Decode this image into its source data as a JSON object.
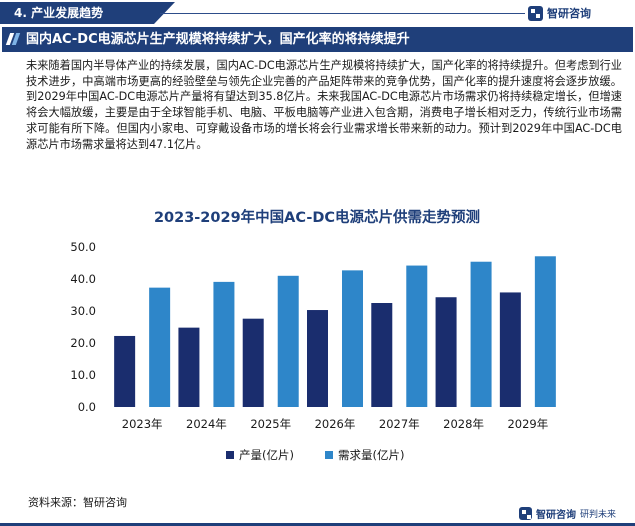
{
  "header": {
    "section_label": "4. 产业发展趋势",
    "brand": "智研咨询"
  },
  "headline": "国内AC-DC电源芯片生产规模将持续扩大，国产化率的将持续提升",
  "paragraph": "未来随着国内半导体产业的持续发展，国内AC-DC电源芯片生产规模将持续扩大，国产化率的将持续提升。但考虑到行业技术进步，中高端市场更高的经验壁垒与领先企业完善的产品矩阵带来的竞争优势，国产化率的提升速度将会逐步放缓。到2029年中国AC-DC电源芯片产量将有望达到35.8亿片。未来我国AC-DC电源芯片市场需求仍将持续稳定增长，但增速将会大幅放缓，主要是由于全球智能手机、电脑、平板电脑等产业进入包含期，消费电子增长相对乏力，传统行业市场需求可能有所下降。但国内小家电、可穿戴设备市场的增长将会行业需求增长带来新的动力。预计到2029年中国AC-DC电源芯片市场需求量将达到47.1亿片。",
  "chart_data": {
    "type": "bar",
    "title": "2023-2029年中国AC-DC电源芯片供需走势预测",
    "categories": [
      "2023年",
      "2024年",
      "2025年",
      "2026年",
      "2027年",
      "2028年",
      "2029年"
    ],
    "series": [
      {
        "name": "产量(亿片)",
        "values": [
          22.2,
          24.8,
          27.6,
          30.3,
          32.5,
          34.3,
          35.8
        ],
        "color": "#1a2d6e"
      },
      {
        "name": "需求量(亿片)",
        "values": [
          37.3,
          39.1,
          41.0,
          42.7,
          44.2,
          45.4,
          47.1
        ],
        "color": "#2e86c9"
      }
    ],
    "y_ticks": [
      "0.0",
      "10.0",
      "20.0",
      "30.0",
      "40.0",
      "50.0"
    ],
    "ylim": [
      0,
      50
    ],
    "legend_position": "bottom-center",
    "grid": false
  },
  "footer": {
    "source": "资料来源：智研咨询",
    "brand": "智研咨询",
    "slogan": "研判未来"
  }
}
